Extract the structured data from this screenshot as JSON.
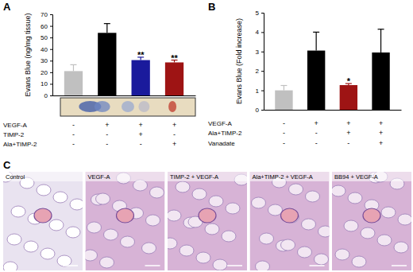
{
  "chart_data": [
    {
      "type": "bar",
      "title": "A",
      "y_label": "Evans Blue (ng/mg tissue)",
      "categories": [
        null,
        null,
        null,
        null
      ],
      "values": [
        21,
        54,
        30.5,
        28.5
      ],
      "errors": [
        5.5,
        8,
        2.5,
        2
      ],
      "colors": [
        "#c0c0c0",
        "#000000",
        "#1a1a9c",
        "#9e1414"
      ],
      "significance": [
        null,
        null,
        "**",
        "**"
      ],
      "ylim": [
        0,
        70
      ],
      "yticks": [
        0,
        10,
        20,
        30,
        40,
        50,
        60,
        70
      ],
      "tick_labels": "y",
      "conditions": [
        {
          "label": "VEGF-A",
          "values": [
            "-",
            "+",
            "+",
            "+"
          ]
        },
        {
          "label": "TIMP-2",
          "values": [
            "-",
            "-",
            "+",
            "-"
          ]
        },
        {
          "label": "Ala+TIMP-2",
          "values": [
            "-",
            "-",
            "-",
            "+"
          ]
        }
      ]
    },
    {
      "type": "bar",
      "title": "B",
      "y_label": "Evans Blue (Fold increase)",
      "categories": [
        null,
        null,
        null,
        null
      ],
      "values": [
        1,
        3.05,
        1.27,
        2.95
      ],
      "errors": [
        0.25,
        0.95,
        0.08,
        1.2
      ],
      "colors": [
        "#c0c0c0",
        "#000000",
        "#9e1414",
        "#000000"
      ],
      "significance": [
        null,
        null,
        "*",
        null
      ],
      "ylim": [
        0,
        5
      ],
      "yticks": [
        0,
        1,
        2,
        3,
        4,
        5
      ],
      "tick_labels": "y",
      "conditions": [
        {
          "label": "VEGF-A",
          "values": [
            "-",
            "+",
            "+",
            "+"
          ]
        },
        {
          "label": "Ala+TIMP-2",
          "values": [
            "-",
            "-",
            "+",
            "+"
          ]
        },
        {
          "label": "Vanadate",
          "values": [
            "-",
            "-",
            "-",
            "+"
          ]
        }
      ]
    }
  ],
  "panel_c": {
    "label": "C",
    "images": [
      "Control",
      "VEGF-A",
      "TIMP-2 + VEGF-A",
      "Ala+TIMP-2 + VEGF-A",
      "BB94 + VEGF-A"
    ]
  }
}
